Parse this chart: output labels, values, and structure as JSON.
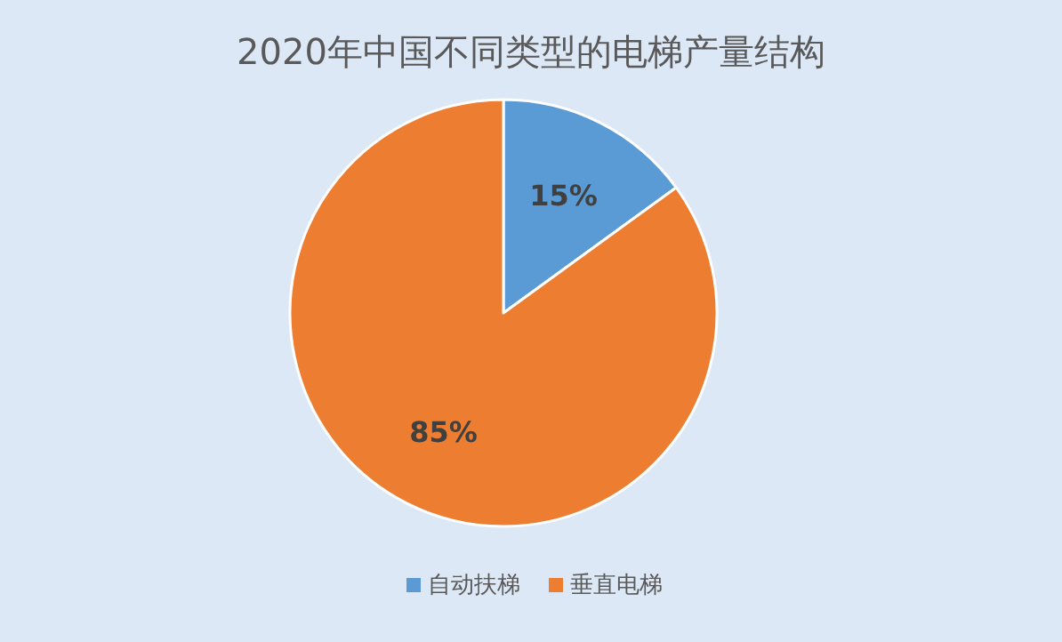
{
  "chart_data": {
    "type": "pie",
    "title": "2020年中国不同类型的电梯产量结构",
    "categories": [
      "自动扶梯",
      "垂直电梯"
    ],
    "values": [
      15,
      85
    ],
    "colors": [
      "#5b9bd5",
      "#ed7d31"
    ],
    "value_labels": [
      "15%",
      "85%"
    ],
    "legend": "bottom"
  }
}
